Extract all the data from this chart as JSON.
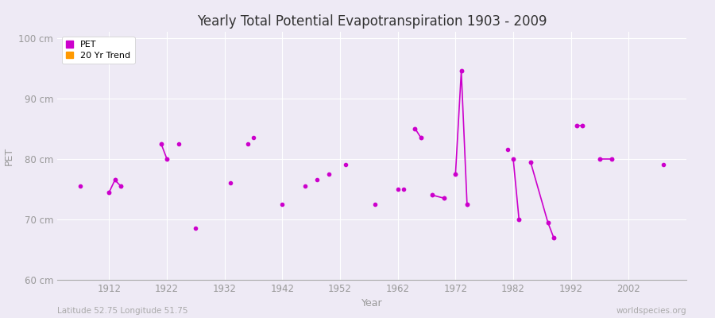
{
  "title": "Yearly Total Potential Evapotranspiration 1903 - 2009",
  "xlabel": "Year",
  "ylabel": "PET",
  "xlim": [
    1903,
    2012
  ],
  "ylim": [
    60,
    101
  ],
  "yticks": [
    60,
    70,
    80,
    90,
    100
  ],
  "ytick_labels": [
    "60 cm",
    "70 cm",
    "80 cm",
    "90 cm",
    "100 cm"
  ],
  "xticks": [
    1912,
    1922,
    1932,
    1942,
    1952,
    1962,
    1972,
    1982,
    1992,
    2002
  ],
  "pet_color": "#cc00cc",
  "trend_color": "#ff9900",
  "plot_bg_color": "#eeeaf5",
  "fig_bg_color": "#eeeaf5",
  "grid_color": "#ffffff",
  "subtitle_left": "Latitude 52.75 Longitude 51.75",
  "subtitle_right": "worldspecies.org",
  "pet_data": [
    [
      1907,
      75.5
    ],
    [
      1912,
      74.5
    ],
    [
      1913,
      76.5
    ],
    [
      1914,
      75.5
    ],
    [
      1921,
      82.5
    ],
    [
      1922,
      80.0
    ],
    [
      1924,
      82.5
    ],
    [
      1927,
      68.5
    ],
    [
      1933,
      76.0
    ],
    [
      1936,
      82.5
    ],
    [
      1937,
      83.5
    ],
    [
      1942,
      72.5
    ],
    [
      1946,
      75.5
    ],
    [
      1948,
      76.5
    ],
    [
      1950,
      77.5
    ],
    [
      1953,
      79.0
    ],
    [
      1958,
      72.5
    ],
    [
      1962,
      75.0
    ],
    [
      1963,
      75.0
    ],
    [
      1965,
      85.0
    ],
    [
      1966,
      83.5
    ],
    [
      1968,
      74.0
    ],
    [
      1970,
      73.5
    ],
    [
      1972,
      77.5
    ],
    [
      1973,
      94.5
    ],
    [
      1974,
      72.5
    ],
    [
      1981,
      81.5
    ],
    [
      1982,
      80.0
    ],
    [
      1983,
      70.0
    ],
    [
      1985,
      79.5
    ],
    [
      1988,
      69.5
    ],
    [
      1989,
      67.0
    ],
    [
      1993,
      85.5
    ],
    [
      1994,
      85.5
    ],
    [
      1997,
      80.0
    ],
    [
      1999,
      80.0
    ],
    [
      2008,
      79.0
    ]
  ],
  "connected_segments": [
    [
      [
        1912,
        74.5
      ],
      [
        1913,
        76.5
      ],
      [
        1914,
        75.5
      ]
    ],
    [
      [
        1921,
        82.5
      ],
      [
        1922,
        80.0
      ]
    ],
    [
      [
        1965,
        85.0
      ],
      [
        1966,
        83.5
      ]
    ],
    [
      [
        1968,
        74.0
      ],
      [
        1970,
        73.5
      ]
    ],
    [
      [
        1972,
        77.5
      ],
      [
        1973,
        94.5
      ],
      [
        1974,
        72.5
      ]
    ],
    [
      [
        1982,
        80.0
      ],
      [
        1983,
        70.0
      ]
    ],
    [
      [
        1985,
        79.5
      ],
      [
        1988,
        69.5
      ],
      [
        1989,
        67.0
      ]
    ],
    [
      [
        1993,
        85.5
      ],
      [
        1994,
        85.5
      ]
    ],
    [
      [
        1997,
        80.0
      ],
      [
        1999,
        80.0
      ]
    ]
  ]
}
